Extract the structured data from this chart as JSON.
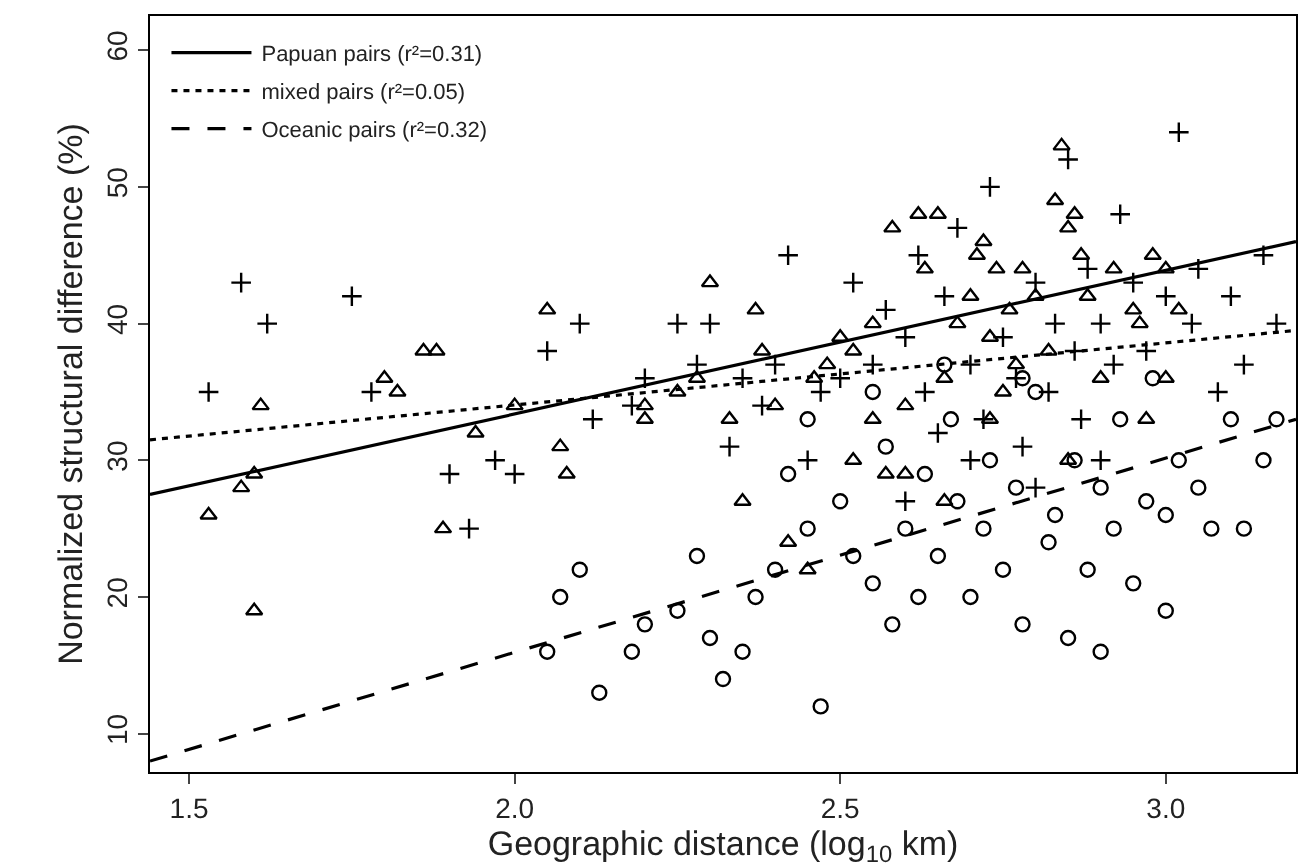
{
  "chart_data": {
    "type": "scatter",
    "xlabel": "Geographic distance (log$_{10}$ km)",
    "ylabel": "Normalized structural difference (%)",
    "xlim": [
      1.44,
      3.2
    ],
    "ylim": [
      7.2,
      62.5
    ],
    "xticks": [
      1.5,
      {
        "value": 2,
        "label": "2.0"
      },
      2.5,
      {
        "value": 3,
        "label": "3.0"
      }
    ],
    "yticks": [
      10,
      20,
      30,
      40,
      50,
      60
    ],
    "legend": "top left",
    "series": [
      {
        "type": "line",
        "name": "Papuan pairs (r²=0.31)",
        "color": "#000000",
        "line_style": "solid",
        "x": [
          1.44,
          3.2
        ],
        "values": [
          27.5,
          46
        ]
      },
      {
        "type": "line",
        "name": "mixed pairs (r²=0.05)",
        "color": "#000000",
        "line_style": "dotted",
        "x": [
          1.44,
          3.2
        ],
        "values": [
          31.5,
          39.5
        ]
      },
      {
        "type": "line",
        "name": "Oceanic pairs (r²=0.32)",
        "color": "#000000",
        "line_style": "dashed",
        "x": [
          1.44,
          3.2
        ],
        "values": [
          8,
          33
        ]
      },
      {
        "color": "#000000",
        "marker": "triangle",
        "x": [
          1.53,
          1.58,
          1.6,
          1.6,
          1.61,
          1.8,
          1.82,
          1.86,
          1.88,
          1.89,
          1.94,
          2.0,
          2.05,
          2.07,
          2.08,
          2.2,
          2.2,
          2.25,
          2.28,
          2.3,
          2.33,
          2.35,
          2.37,
          2.38,
          2.4,
          2.42,
          2.45,
          2.46,
          2.48,
          2.5,
          2.52,
          2.52,
          2.55,
          2.55,
          2.58,
          2.6,
          2.6,
          2.62,
          2.63,
          2.65,
          2.66,
          2.68,
          2.7,
          2.71,
          2.72,
          2.73,
          2.74,
          2.75,
          2.76,
          2.77,
          2.78,
          2.8,
          2.82,
          2.83,
          2.84,
          2.85,
          2.86,
          2.87,
          2.88,
          2.9,
          2.92,
          2.95,
          2.96,
          2.98,
          3.0,
          3.02,
          3.0,
          2.97,
          2.85,
          2.73,
          2.66,
          2.57
        ],
        "values": [
          26,
          28,
          29,
          19,
          34,
          36,
          35,
          38,
          38,
          25,
          32,
          34,
          41,
          31,
          29,
          33,
          34,
          35,
          36,
          43,
          33,
          27,
          41,
          38,
          34,
          24,
          22,
          36,
          37,
          39,
          38,
          30,
          40,
          33,
          47,
          34,
          29,
          48,
          44,
          48,
          36,
          40,
          42,
          45,
          46,
          39,
          44,
          35,
          41,
          37,
          44,
          42,
          38,
          49,
          53,
          47,
          48,
          45,
          42,
          36,
          44,
          41,
          40,
          45,
          44,
          41,
          36,
          33,
          30,
          33,
          27,
          29
        ]
      },
      {
        "color": "#000000",
        "marker": "cross",
        "x": [
          1.53,
          1.58,
          1.62,
          1.75,
          1.78,
          1.9,
          1.93,
          1.97,
          2.0,
          2.05,
          2.1,
          2.12,
          2.18,
          2.2,
          2.25,
          2.28,
          2.3,
          2.33,
          2.35,
          2.38,
          2.4,
          2.42,
          2.45,
          2.47,
          2.5,
          2.52,
          2.55,
          2.57,
          2.6,
          2.62,
          2.63,
          2.65,
          2.66,
          2.68,
          2.7,
          2.72,
          2.73,
          2.75,
          2.77,
          2.78,
          2.8,
          2.82,
          2.83,
          2.85,
          2.86,
          2.87,
          2.88,
          2.9,
          2.92,
          2.93,
          2.95,
          2.97,
          3.0,
          3.02,
          3.04,
          3.05,
          3.08,
          3.1,
          3.12,
          3.15,
          3.17,
          2.9,
          2.8,
          2.7,
          2.6
        ],
        "values": [
          35,
          43,
          40,
          42,
          35,
          29,
          25,
          30,
          29,
          38,
          40,
          33,
          34,
          36,
          40,
          37,
          40,
          31,
          36,
          34,
          37,
          45,
          30,
          35,
          36,
          43,
          37,
          41,
          39,
          45,
          35,
          32,
          42,
          47,
          37,
          33,
          50,
          39,
          36,
          31,
          43,
          35,
          40,
          52,
          38,
          33,
          44,
          40,
          37,
          48,
          43,
          38,
          42,
          54,
          40,
          44,
          35,
          42,
          37,
          45,
          40,
          30,
          28,
          30,
          27
        ]
      },
      {
        "color": "#000000",
        "marker": "circle",
        "x": [
          2.07,
          2.05,
          2.1,
          2.13,
          2.18,
          2.2,
          2.25,
          2.28,
          2.3,
          2.32,
          2.35,
          2.37,
          2.4,
          2.42,
          2.45,
          2.47,
          2.5,
          2.52,
          2.55,
          2.57,
          2.58,
          2.6,
          2.62,
          2.63,
          2.65,
          2.67,
          2.68,
          2.7,
          2.72,
          2.73,
          2.75,
          2.77,
          2.78,
          2.8,
          2.82,
          2.83,
          2.85,
          2.86,
          2.88,
          2.9,
          2.92,
          2.93,
          2.95,
          2.97,
          2.98,
          3.0,
          3.02,
          3.05,
          3.07,
          3.1,
          3.12,
          3.15,
          3.17,
          3.0,
          2.9,
          2.78,
          2.66,
          2.55,
          2.45
        ],
        "values": [
          20,
          16,
          22,
          13,
          16,
          18,
          19,
          23,
          17,
          14,
          16,
          20,
          22,
          29,
          25,
          12,
          27,
          23,
          21,
          31,
          18,
          25,
          20,
          29,
          23,
          33,
          27,
          20,
          25,
          30,
          22,
          28,
          18,
          35,
          24,
          26,
          17,
          30,
          22,
          28,
          25,
          33,
          21,
          27,
          36,
          26,
          30,
          28,
          25,
          33,
          25,
          30,
          33,
          19,
          16,
          36,
          37,
          35,
          33
        ]
      }
    ]
  }
}
